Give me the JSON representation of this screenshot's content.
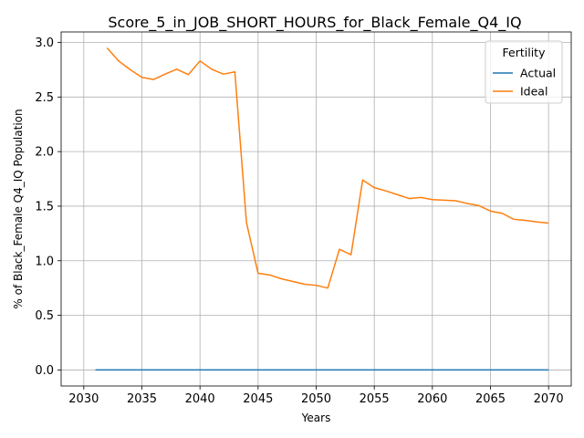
{
  "chart_data": {
    "type": "line",
    "title": "Score_5_in_JOB_SHORT_HOURS_for_Black_Female_Q4_IQ",
    "xlabel": "Years",
    "ylabel": "% of Black_Female Q4_IQ Population",
    "xlim": [
      2028.05,
      2071.95
    ],
    "ylim": [
      -0.147,
      3.096
    ],
    "x_ticks": [
      2030,
      2035,
      2040,
      2045,
      2050,
      2055,
      2060,
      2065,
      2070
    ],
    "y_ticks": [
      0.0,
      0.5,
      1.0,
      1.5,
      2.0,
      2.5,
      3.0
    ],
    "x_tick_labels": [
      "2030",
      "2035",
      "2040",
      "2045",
      "2050",
      "2055",
      "2060",
      "2065",
      "2070"
    ],
    "y_tick_labels": [
      "0.0",
      "0.5",
      "1.0",
      "1.5",
      "2.0",
      "2.5",
      "3.0"
    ],
    "grid": true,
    "legend": {
      "title": "Fertility",
      "placement": "top-right"
    },
    "series": [
      {
        "name": "Actual",
        "color": "#1f77b4",
        "x": [
          2031,
          2070
        ],
        "y": [
          0.0,
          0.0
        ]
      },
      {
        "name": "Ideal",
        "color": "#ff7f0e",
        "x": [
          2032,
          2033,
          2034,
          2035,
          2036,
          2037,
          2038,
          2039,
          2040,
          2041,
          2042,
          2043,
          2044,
          2045,
          2046,
          2047,
          2048,
          2049,
          2050,
          2051,
          2052,
          2053,
          2054,
          2055,
          2056,
          2057,
          2058,
          2059,
          2060,
          2061,
          2062,
          2063,
          2064,
          2065,
          2066,
          2067,
          2068,
          2069,
          2070
        ],
        "y": [
          2.95,
          2.83,
          2.75,
          2.68,
          2.66,
          2.71,
          2.755,
          2.705,
          2.83,
          2.755,
          2.71,
          2.73,
          1.35,
          0.885,
          0.87,
          0.835,
          0.81,
          0.785,
          0.775,
          0.75,
          1.105,
          1.055,
          1.74,
          1.67,
          1.64,
          1.605,
          1.57,
          1.58,
          1.56,
          1.555,
          1.55,
          1.525,
          1.505,
          1.455,
          1.435,
          1.38,
          1.37,
          1.355,
          1.345
        ]
      }
    ]
  }
}
